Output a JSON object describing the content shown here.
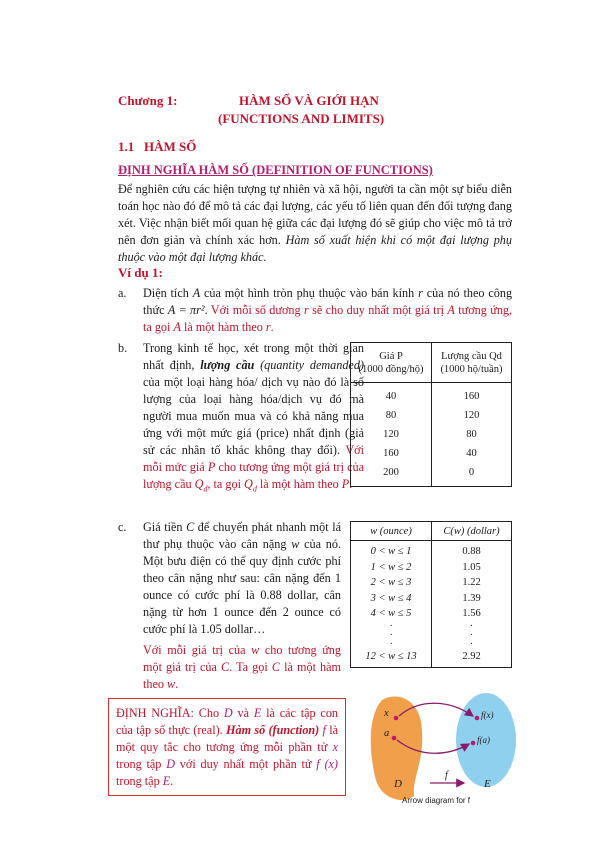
{
  "chapter": {
    "label": "Chương 1:",
    "title_vi": "HÀM SỐ VÀ GIỚI HẠN",
    "title_en": "(FUNCTIONS AND LIMITS)"
  },
  "section": {
    "number": "1.1",
    "title": "HÀM SỐ"
  },
  "definition_heading": "ĐỊNH NGHĨA HÀM SỐ (DEFINITION OF FUNCTIONS)",
  "intro": {
    "text": "Để nghiên cứu các hiện tượng tự nhiên và xã hội, người ta cần một sự biểu diễn toán học nào đó để mô tả các đại lượng, các yếu tố liên quan đến đối tượng đang xét. Việc nhận biết mối quan hệ giữa các đại lượng đó sẽ giúp cho việc mô tả trở nên đơn giản và chính xác hơn.",
    "italic": "Hàm số xuất hiện khi có một đại lượng phụ thuộc vào một đại lượng khác."
  },
  "example_heading": "Ví dụ 1:",
  "ex_a": {
    "marker": "a.",
    "t1": "Diện tích",
    "A": "A",
    "t2": "của một hình tròn phụ thuộc vào bán kính",
    "r": "r",
    "t3": "của nó theo",
    "t4": "công thức",
    "formula": "A = πr²",
    "t5": ". ",
    "red1": "Với mỗi số dương",
    "r2": "r",
    "red2": "sẽ cho duy nhất một giá trị",
    "A2": "A",
    "red3": "tương ứng, ta gọi",
    "A3": "A",
    "red4": "là một hàm theo",
    "r3": "r",
    "red5": "."
  },
  "ex_b": {
    "marker": "b.",
    "t1": "Trong kinh tế học, xét trong một thời gian nhất định,",
    "bold": "lượng cầu",
    "t2": "(quantity demanded)",
    "t3": "của một loại hàng hóa/ dịch vụ nào đó là số lượng của loại hàng hóa/dịch vụ đó mà người mua muốn mua và có khả năng mua ứng với một mức giá (price) nhất định (giả sử các nhân tố khác không thay đổi).",
    "red1": "Với mỗi mức giá",
    "P": "P",
    "red2": "cho tương ứng một giá trị của lượng cầu",
    "Qd": "Q",
    "sub": "d",
    "red3": ", ta gọi",
    "Qd2": "Q",
    "sub2": "d",
    "red4": "là một hàm theo",
    "P2": "P",
    "red5": "."
  },
  "table_b": {
    "h1": "Giá P",
    "h1b": "(1000 đồng/hộ)",
    "h2": "Lượng cầu Qd",
    "h2b": "(1000 hộ/tuần)",
    "rows": [
      [
        "40",
        "160"
      ],
      [
        "80",
        "120"
      ],
      [
        "120",
        "80"
      ],
      [
        "160",
        "40"
      ],
      [
        "200",
        "0"
      ]
    ]
  },
  "ex_c": {
    "marker": "c.",
    "t1": "Giá tiền",
    "C": "C",
    "t2": "để chuyển phát nhanh một lá thư phụ thuộc vào cân nặng",
    "w": "w",
    "t3": "của nó. Một bưu điện có thể quy định cước phí theo cân nặng như sau: cân nặng đến 1 ounce có cước phí là 0.88 dollar, cân nặng từ hơn 1 ounce đến 2 ounce có cước phí là 1.05 dollar…",
    "red1": "Với mỗi giá trị của",
    "w2": "w",
    "red2": "cho tương ứng một giá trị của",
    "C2": "C",
    "red3": ". Ta gọi",
    "C3": "C",
    "red4": "là một hàm theo",
    "w3": "w",
    "red5": "."
  },
  "table_c": {
    "h1": "w (ounce)",
    "h2": "C(w) (dollar)",
    "rows": [
      [
        "0 < w ≤ 1",
        "0.88"
      ],
      [
        "1 < w ≤ 2",
        "1.05"
      ],
      [
        "2 < w ≤ 3",
        "1.22"
      ],
      [
        "3 < w ≤ 4",
        "1.39"
      ],
      [
        "4 < w ≤ 5",
        "1.56"
      ],
      [
        "·",
        "·"
      ],
      [
        "·",
        "·"
      ],
      [
        "·",
        "·"
      ],
      [
        "12 < w ≤ 13",
        "2.92"
      ]
    ]
  },
  "definition_box": {
    "t1": "ĐỊNH NGHĨA:",
    "t2": "Cho",
    "D": "D",
    "t3": "và",
    "E": "E",
    "t4": "là các tập con của tập số thực (real).",
    "bold": "Hàm số (function)",
    "f": "f",
    "t5": "là một quy tắc cho tương ứng mỗi phần tử",
    "x": "x",
    "t6": "trong tập",
    "D2": "D",
    "t7": "với duy nhất một phần tử",
    "fx": "f (x)",
    "t8": "trong tập",
    "E2": "E",
    "t9": "."
  },
  "diagram": {
    "x": "x",
    "a": "a",
    "fx": "f(x)",
    "fa": "f(a)",
    "f": "f",
    "D": "D",
    "E": "E",
    "caption": "Arrow diagram for f",
    "colors": {
      "D_fill": "#f0a04b",
      "E_fill": "#8fd0ee",
      "arrow": "#8b1a6b",
      "point": "#c4176c"
    }
  }
}
